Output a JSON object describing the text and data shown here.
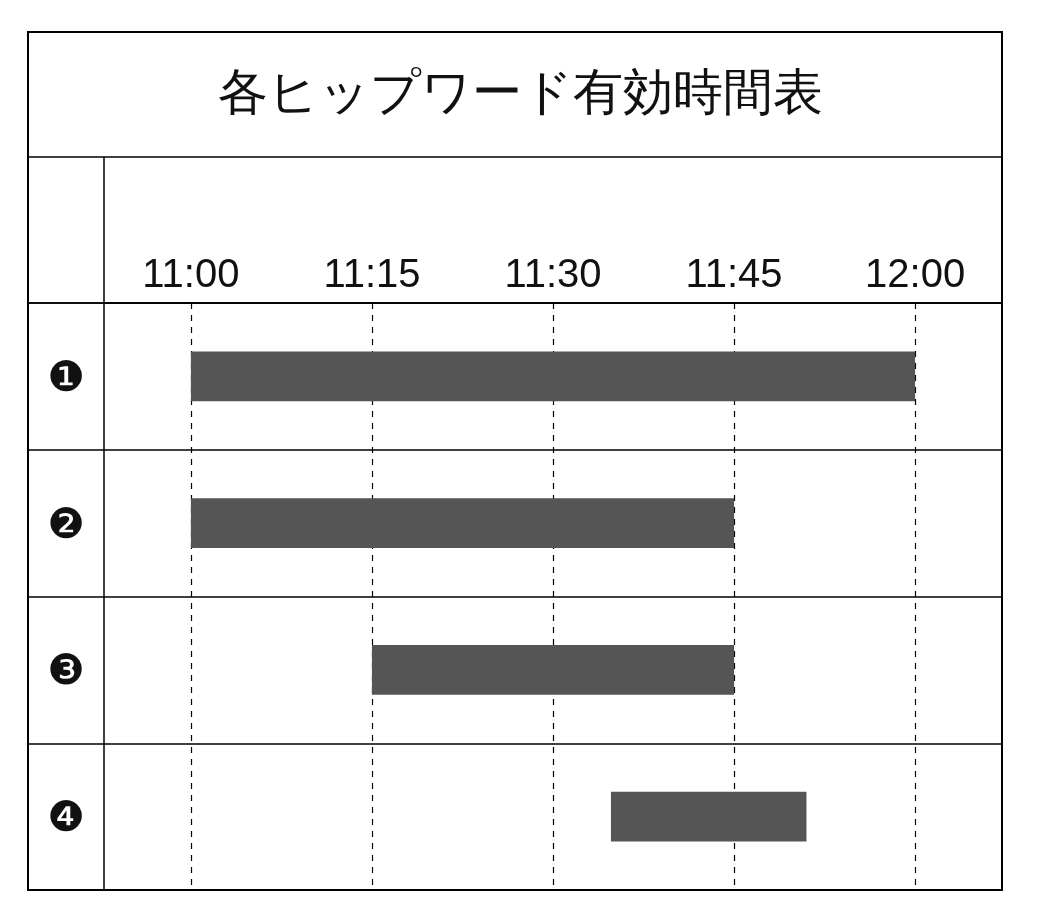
{
  "chart_data": {
    "type": "bar",
    "orientation": "horizontal",
    "title": "各ヒップワード有効時間表",
    "categories": [
      "❶",
      "❷",
      "❸",
      "❹"
    ],
    "base": [
      11,
      11,
      11.25,
      11.58
    ],
    "values": [
      1,
      0.75,
      0.5,
      0.27
    ],
    "color": "#555555",
    "xlim": [
      10.88,
      12.12
    ],
    "xticks": [
      {
        "value": 11,
        "label": "11:00"
      },
      {
        "value": 11.25,
        "label": "11:15"
      },
      {
        "value": 11.5,
        "label": "11:30"
      },
      {
        "value": 11.75,
        "label": "11:45"
      },
      {
        "value": 12,
        "label": "12:00"
      }
    ],
    "grid": true
  }
}
